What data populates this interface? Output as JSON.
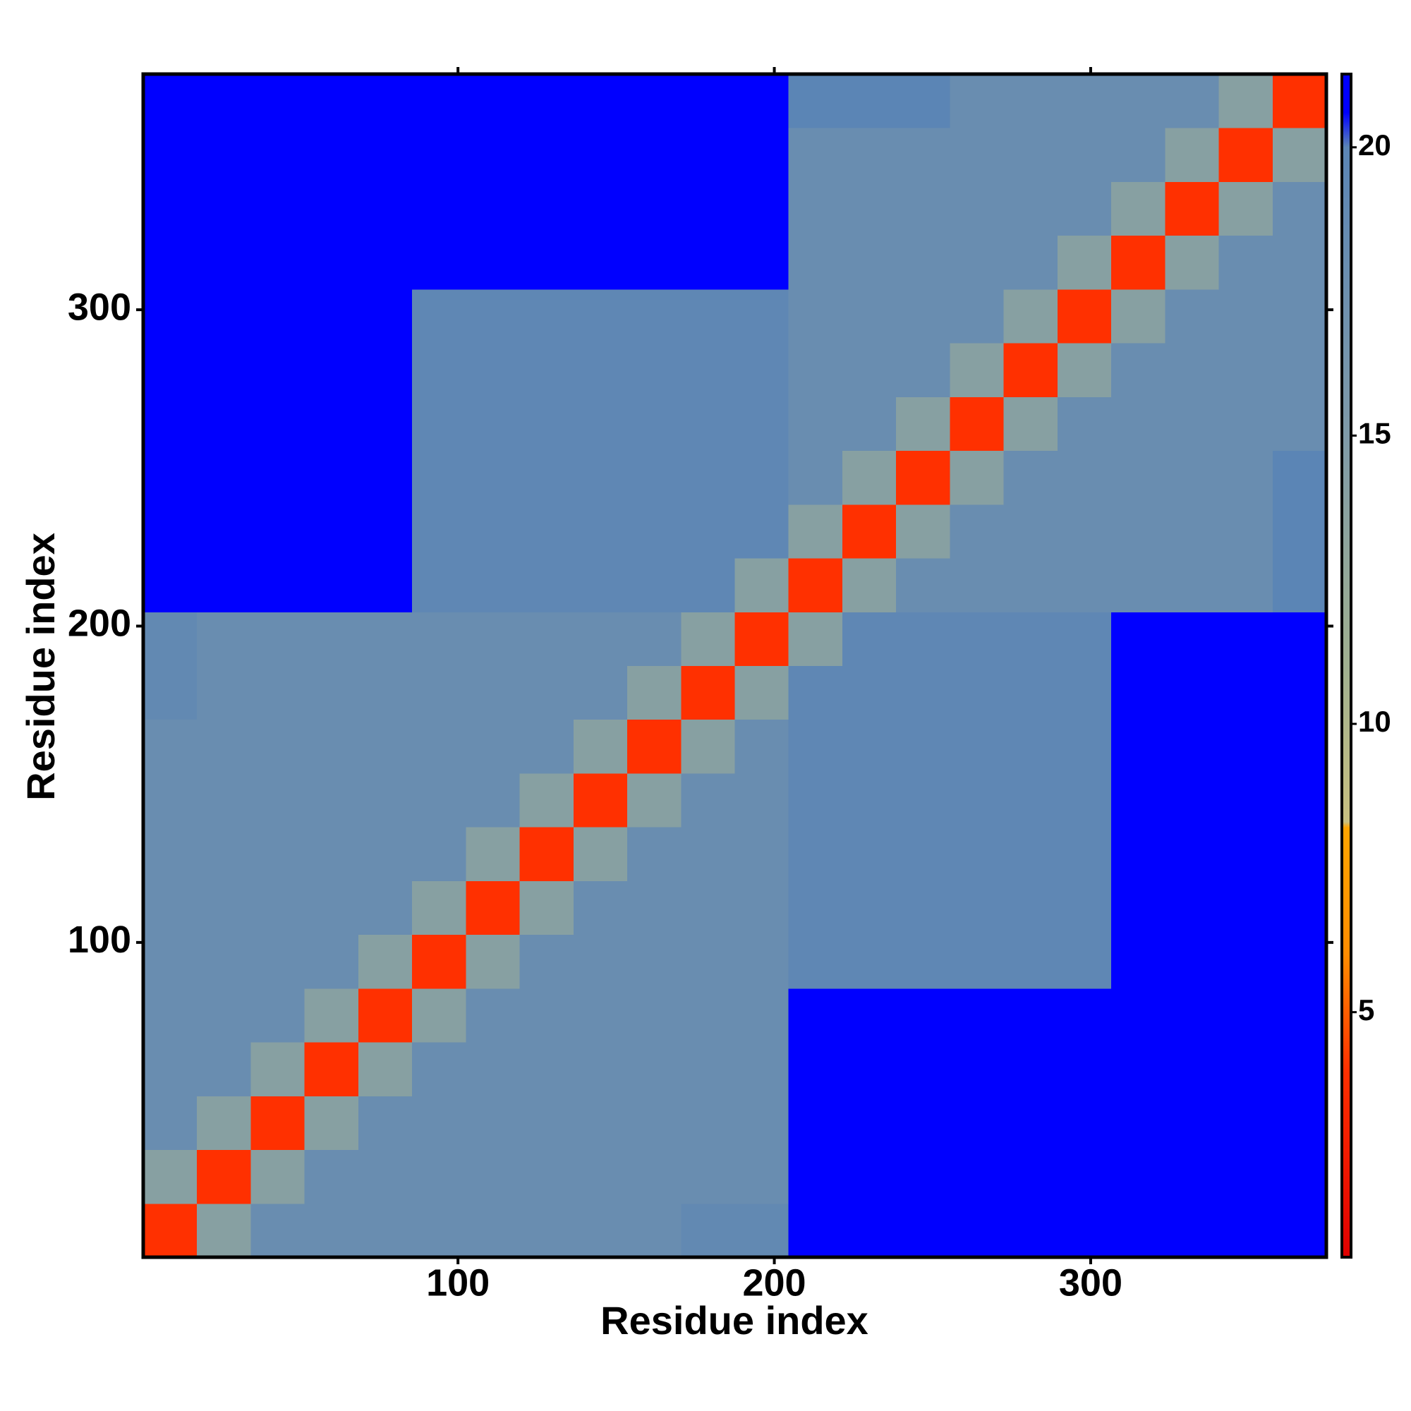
{
  "chart_data": {
    "type": "heatmap",
    "xlabel": "Residue index",
    "ylabel": "Residue index",
    "xlim": [
      0.5,
      374.5
    ],
    "ylim": [
      0.5,
      374.5
    ],
    "xticks": [
      100,
      200,
      300
    ],
    "yticks": [
      100,
      200,
      300
    ],
    "clim": [
      0.75,
      21.27
    ],
    "cticks": [
      5,
      10,
      15,
      20
    ],
    "colorscale": [
      [
        0.75,
        "#e00000"
      ],
      [
        4,
        "#ff3000"
      ],
      [
        6,
        "#ff8c00"
      ],
      [
        8.2,
        "#ffa500"
      ],
      [
        8.3,
        "#c8c080"
      ],
      [
        11,
        "#a0b090"
      ],
      [
        15,
        "#7f9aa8"
      ],
      [
        20,
        "#5b85b5"
      ],
      [
        20.6,
        "#0000ff"
      ],
      [
        21.27,
        "#0000ff"
      ]
    ],
    "z": [
      [
        4,
        14,
        18,
        18,
        18,
        18,
        18,
        18,
        18,
        18,
        19,
        19,
        21,
        21,
        21,
        21,
        21,
        21,
        21,
        21,
        21,
        21
      ],
      [
        14,
        4,
        14,
        18,
        18,
        18,
        18,
        18,
        18,
        18,
        18,
        18,
        21,
        21,
        21,
        21,
        21,
        21,
        21,
        21,
        21,
        21
      ],
      [
        18,
        14,
        4,
        14,
        18,
        18,
        18,
        18,
        18,
        18,
        18,
        18,
        21,
        21,
        21,
        21,
        21,
        21,
        21,
        21,
        21,
        21
      ],
      [
        18,
        18,
        14,
        4,
        14,
        18,
        18,
        18,
        18,
        18,
        18,
        18,
        21,
        21,
        21,
        21,
        21,
        21,
        21,
        21,
        21,
        21
      ],
      [
        18,
        18,
        18,
        14,
        4,
        14,
        18,
        18,
        18,
        18,
        18,
        18,
        21,
        21,
        21,
        21,
        21,
        21,
        21,
        21,
        21,
        21
      ],
      [
        18,
        18,
        18,
        18,
        14,
        4,
        14,
        18,
        18,
        18,
        18,
        18,
        19.5,
        19.5,
        19.5,
        19.5,
        19.5,
        19.5,
        21,
        21,
        21,
        21
      ],
      [
        18,
        18,
        18,
        18,
        18,
        14,
        4,
        14,
        18,
        18,
        18,
        18,
        19.5,
        19.5,
        19.5,
        19.5,
        19.5,
        19.5,
        21,
        21,
        21,
        21
      ],
      [
        18,
        18,
        18,
        18,
        18,
        18,
        14,
        4,
        14,
        18,
        18,
        18,
        19.5,
        19.5,
        19.5,
        19.5,
        19.5,
        19.5,
        21,
        21,
        21,
        21
      ],
      [
        18,
        18,
        18,
        18,
        18,
        18,
        18,
        14,
        4,
        14,
        18,
        18,
        19.5,
        19.5,
        19.5,
        19.5,
        19.5,
        19.5,
        21,
        21,
        21,
        21
      ],
      [
        18,
        18,
        18,
        18,
        18,
        18,
        18,
        18,
        14,
        4,
        14,
        18,
        19.5,
        19.5,
        19.5,
        19.5,
        19.5,
        19.5,
        21,
        21,
        21,
        21
      ],
      [
        19,
        18,
        18,
        18,
        18,
        18,
        18,
        18,
        18,
        14,
        4,
        14,
        19.5,
        19.5,
        19.5,
        19.5,
        19.5,
        19.5,
        21,
        21,
        21,
        21
      ],
      [
        19,
        18,
        18,
        18,
        18,
        18,
        18,
        18,
        18,
        18,
        14,
        4,
        14,
        19.5,
        19.5,
        19.5,
        19.5,
        19.5,
        21,
        21,
        21,
        21
      ],
      [
        21,
        21,
        21,
        21,
        21,
        19.5,
        19.5,
        19.5,
        19.5,
        19.5,
        19.5,
        14,
        4,
        14,
        18,
        18,
        18,
        18,
        18,
        18,
        18,
        20
      ],
      [
        21,
        21,
        21,
        21,
        21,
        19.5,
        19.5,
        19.5,
        19.5,
        19.5,
        19.5,
        19.5,
        14,
        4,
        14,
        18,
        18,
        18,
        18,
        18,
        18,
        20
      ],
      [
        21,
        21,
        21,
        21,
        21,
        19.5,
        19.5,
        19.5,
        19.5,
        19.5,
        19.5,
        19.5,
        18,
        14,
        4,
        14,
        18,
        18,
        18,
        18,
        18,
        20
      ],
      [
        21,
        21,
        21,
        21,
        21,
        19.5,
        19.5,
        19.5,
        19.5,
        19.5,
        19.5,
        19.5,
        18,
        18,
        14,
        4,
        14,
        18,
        18,
        18,
        18,
        18
      ],
      [
        21,
        21,
        21,
        21,
        21,
        19.5,
        19.5,
        19.5,
        19.5,
        19.5,
        19.5,
        19.5,
        18,
        18,
        18,
        14,
        4,
        14,
        18,
        18,
        18,
        18
      ],
      [
        21,
        21,
        21,
        21,
        21,
        19.5,
        19.5,
        19.5,
        19.5,
        19.5,
        19.5,
        19.5,
        18,
        18,
        18,
        18,
        14,
        4,
        14,
        18,
        18,
        18
      ],
      [
        21,
        21,
        21,
        21,
        21,
        21,
        21,
        21,
        21,
        21,
        21,
        21,
        18,
        18,
        18,
        18,
        18,
        14,
        4,
        14,
        18,
        18
      ],
      [
        21,
        21,
        21,
        21,
        21,
        21,
        21,
        21,
        21,
        21,
        21,
        21,
        18,
        18,
        18,
        18,
        18,
        18,
        14,
        4,
        14,
        18
      ],
      [
        21,
        21,
        21,
        21,
        21,
        21,
        21,
        21,
        21,
        21,
        21,
        21,
        18,
        18,
        18,
        18,
        18,
        18,
        18,
        14,
        4,
        14
      ],
      [
        21,
        21,
        21,
        21,
        21,
        21,
        21,
        21,
        21,
        21,
        21,
        21,
        20,
        20,
        20,
        18,
        18,
        18,
        18,
        18,
        14,
        4
      ]
    ]
  }
}
